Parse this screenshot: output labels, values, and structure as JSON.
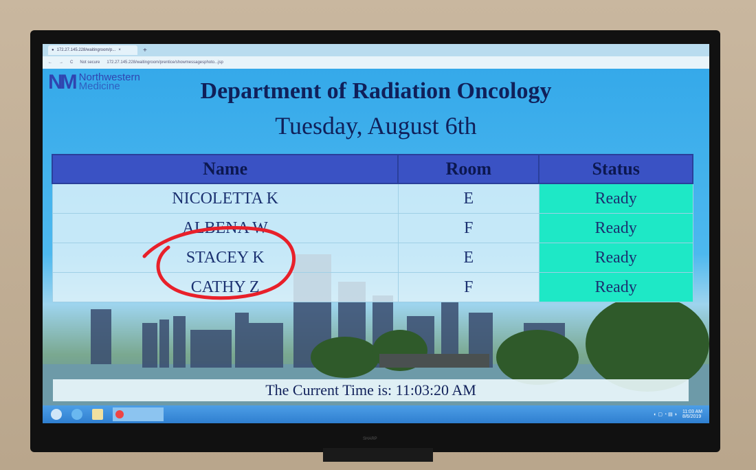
{
  "browser": {
    "tab_title": "172.27.145.228/waitingroom/p...",
    "security": "Not secure",
    "url": "172.27.145.228/waitingroom/prentice/showmessagesphoto...jsp"
  },
  "logo": {
    "line1": "Northwestern",
    "line2": "Medicine"
  },
  "header": {
    "title": "Department of Radiation Oncology",
    "date": "Tuesday, August 6th"
  },
  "table": {
    "columns": [
      "Name",
      "Room",
      "Status"
    ],
    "rows": [
      [
        "NICOLETTA K",
        "E",
        "Ready"
      ],
      [
        "ALBENA W",
        "F",
        "Ready"
      ],
      [
        "STACEY K",
        "E",
        "Ready"
      ],
      [
        "CATHY Z",
        "F",
        "Ready"
      ]
    ]
  },
  "footer": {
    "time_label": "The Current Time is: 11:03:20 AM"
  },
  "taskbar": {
    "clock_time": "11:03 AM",
    "clock_date": "8/6/2019"
  },
  "tv": {
    "brand": "SHARP"
  },
  "colors": {
    "page_bg": "#3aaee8",
    "header_row": "#3a52c4",
    "status_ready": "#1ee8c6",
    "annotation": "#e8202a"
  }
}
